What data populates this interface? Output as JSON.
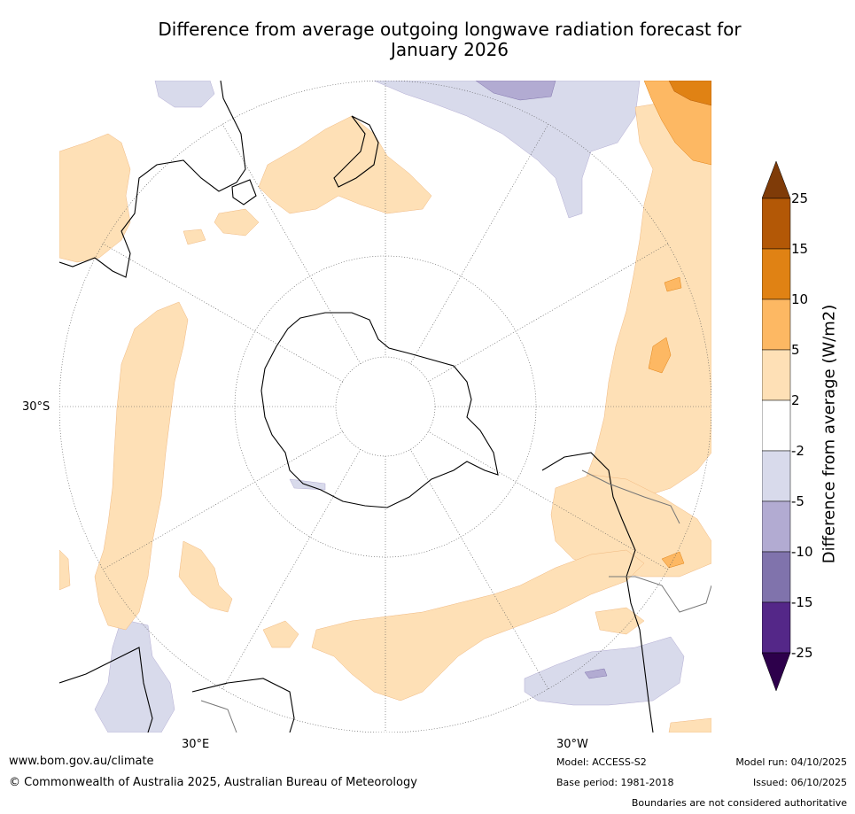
{
  "title_line1": "Difference from average outgoing longwave radiation forecast for",
  "title_line2": "January 2026",
  "map": {
    "projection": "south-polar-stereographic",
    "lat_label": "30°S",
    "lon_labels": [
      "30°E",
      "30°W"
    ]
  },
  "colorbar": {
    "label": "Difference from average (W/m2)",
    "ticks": [
      "25",
      "15",
      "10",
      "5",
      "2",
      "-2",
      "-5",
      "-10",
      "-15",
      "-25"
    ],
    "colors": {
      "gt25": "#7f3b08",
      "15_25": "#b35806",
      "10_15": "#e08214",
      "5_10": "#fdb863",
      "2_5": "#fee0b6",
      "m2_2": "#ffffff",
      "m5_m2": "#d8daeb",
      "m10_m5": "#b2abd2",
      "m15_m10": "#8073ac",
      "m25_m15": "#542788",
      "lt_m25": "#2d004b"
    }
  },
  "footer": {
    "website": "www.bom.gov.au/climate",
    "copyright": "© Commonwealth of Australia 2025, Australian Bureau of Meteorology",
    "model": "Model: ACCESS-S2",
    "base_period": "Base period: 1981-2018",
    "model_run": "Model run: 04/10/2025",
    "issued": "Issued: 06/10/2025",
    "disclaimer": "Boundaries are not considered authoritative"
  }
}
